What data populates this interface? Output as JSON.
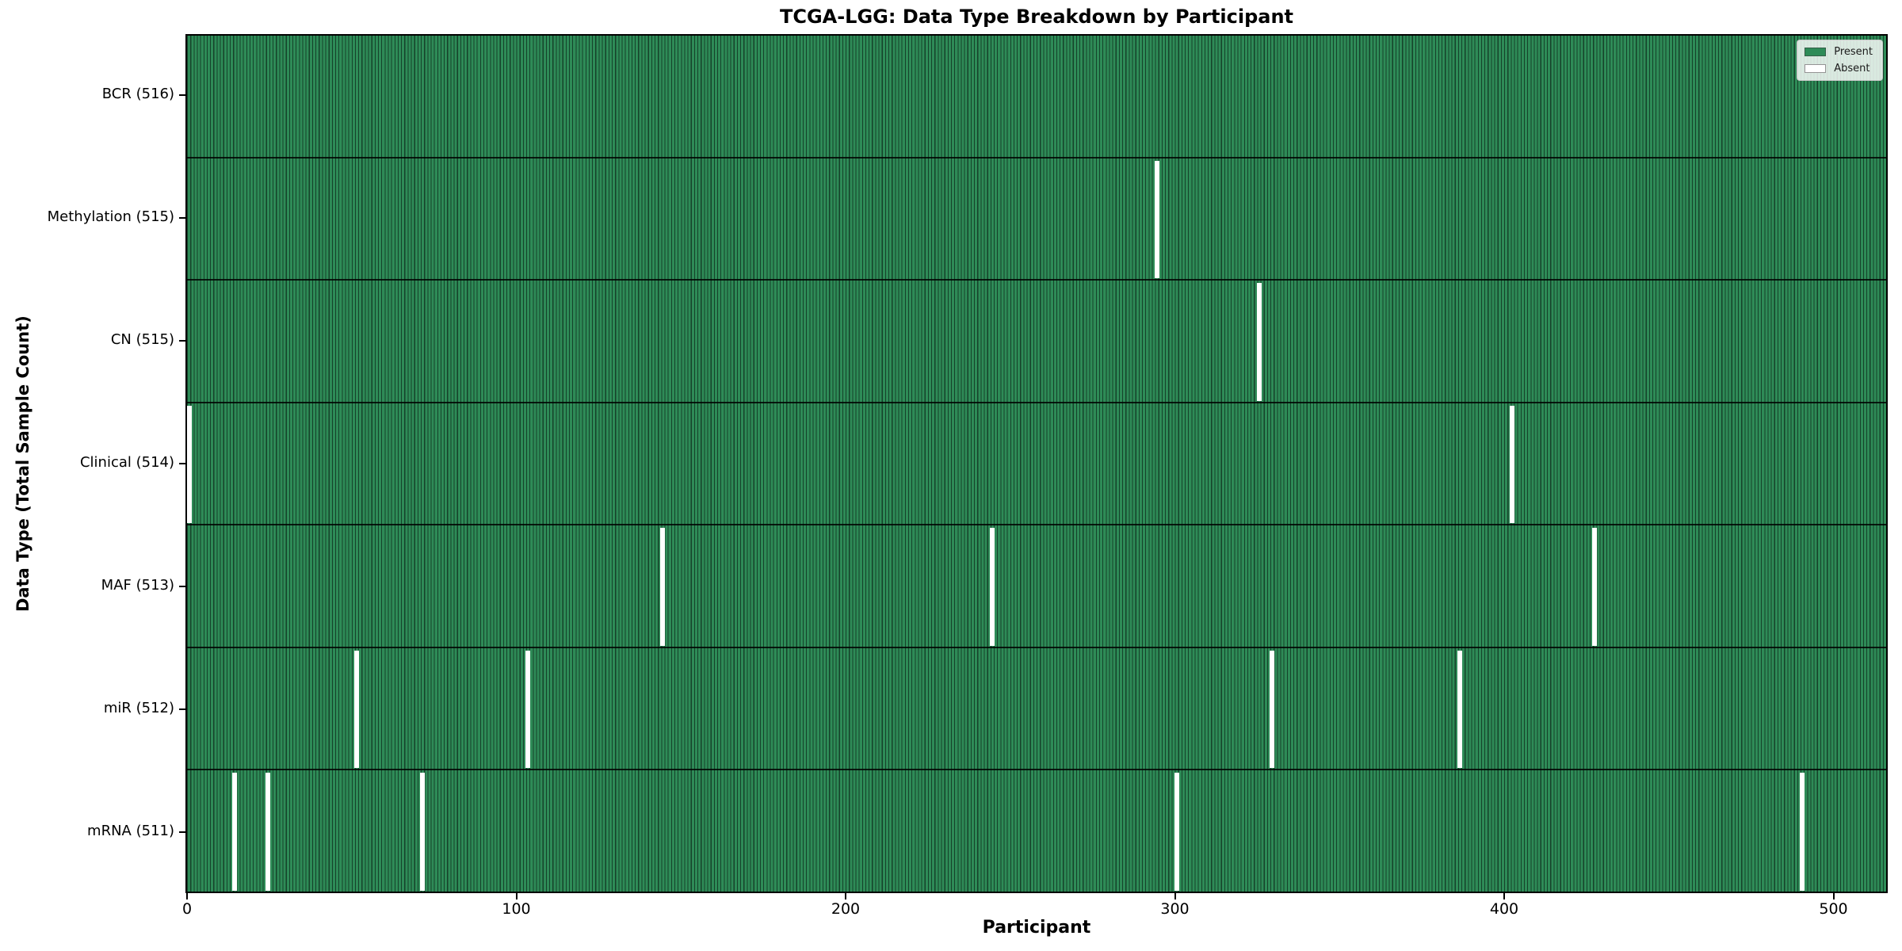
{
  "chart_data": {
    "type": "heatmap",
    "title": "TCGA-LGG: Data Type Breakdown by Participant",
    "xlabel": "Participant",
    "ylabel": "Data Type (Total Sample Count)",
    "x_ticks": [
      0,
      100,
      200,
      300,
      400,
      500
    ],
    "x_range": [
      0,
      516
    ],
    "n_participants": 516,
    "legend": [
      {
        "label": "Present",
        "color": "#2e8b57"
      },
      {
        "label": "Absent",
        "color": "#ffffff"
      }
    ],
    "colors": {
      "present": "#2e8b57",
      "absent": "#ffffff",
      "bar_edge": "#15422a"
    },
    "rows": [
      {
        "label": "BCR (516)",
        "total": 516,
        "absent_participants": []
      },
      {
        "label": "Methylation (515)",
        "total": 515,
        "absent_participants": [
          294
        ]
      },
      {
        "label": "CN (515)",
        "total": 515,
        "absent_participants": [
          325
        ]
      },
      {
        "label": "Clinical (514)",
        "total": 514,
        "absent_participants": [
          0,
          402
        ]
      },
      {
        "label": "MAF (513)",
        "total": 513,
        "absent_participants": [
          144,
          244,
          427
        ]
      },
      {
        "label": "miR (512)",
        "total": 512,
        "absent_participants": [
          51,
          103,
          329,
          386
        ]
      },
      {
        "label": "mRNA (511)",
        "total": 511,
        "absent_participants": [
          14,
          24,
          71,
          300,
          490
        ]
      }
    ]
  }
}
